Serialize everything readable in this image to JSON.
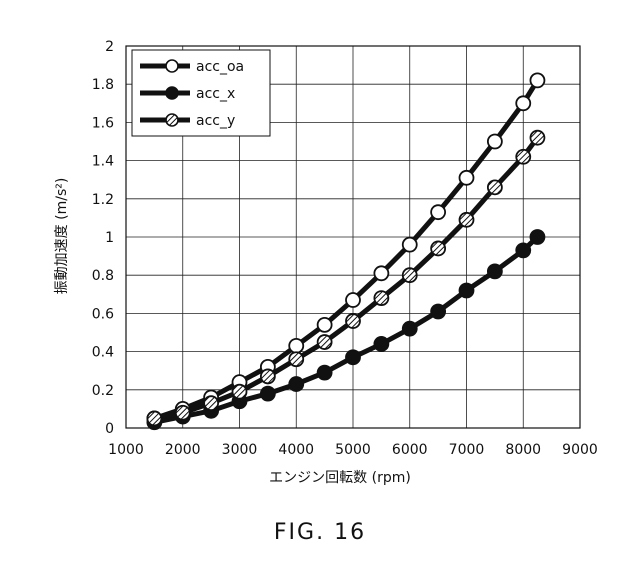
{
  "figure_label": "FIG. 16",
  "chart_data": {
    "type": "line",
    "title": "",
    "xlabel": "エンジン回転数 (rpm)",
    "ylabel": "振動加速度 (m/s²)",
    "xlim": [
      1000,
      9000
    ],
    "ylim": [
      0,
      2
    ],
    "xticks": [
      1000,
      2000,
      3000,
      4000,
      5000,
      6000,
      7000,
      8000,
      9000
    ],
    "yticks": [
      0,
      0.2,
      0.4,
      0.6,
      0.8,
      1,
      1.2,
      1.4,
      1.6,
      1.8,
      2
    ],
    "grid": true,
    "legend_position": "top-left",
    "series": [
      {
        "name": "acc_oa",
        "marker": "hollow",
        "x": [
          1500,
          2000,
          2500,
          3000,
          3500,
          4000,
          4500,
          5000,
          5500,
          6000,
          6500,
          7000,
          7500,
          8000,
          8250
        ],
        "y": [
          0.05,
          0.1,
          0.16,
          0.24,
          0.32,
          0.43,
          0.54,
          0.67,
          0.81,
          0.96,
          1.13,
          1.31,
          1.5,
          1.7,
          1.82
        ]
      },
      {
        "name": "acc_x",
        "marker": "filled",
        "x": [
          1500,
          2000,
          2500,
          3000,
          3500,
          4000,
          4500,
          5000,
          5500,
          6000,
          6500,
          7000,
          7500,
          8000,
          8250
        ],
        "y": [
          0.03,
          0.06,
          0.09,
          0.14,
          0.18,
          0.23,
          0.29,
          0.37,
          0.44,
          0.52,
          0.61,
          0.72,
          0.82,
          0.93,
          1.0
        ]
      },
      {
        "name": "acc_y",
        "marker": "hatched",
        "x": [
          1500,
          2000,
          2500,
          3000,
          3500,
          4000,
          4500,
          5000,
          5500,
          6000,
          6500,
          7000,
          7500,
          8000,
          8250
        ],
        "y": [
          0.05,
          0.08,
          0.13,
          0.19,
          0.27,
          0.36,
          0.45,
          0.56,
          0.68,
          0.8,
          0.94,
          1.09,
          1.26,
          1.42,
          1.52
        ]
      }
    ]
  }
}
